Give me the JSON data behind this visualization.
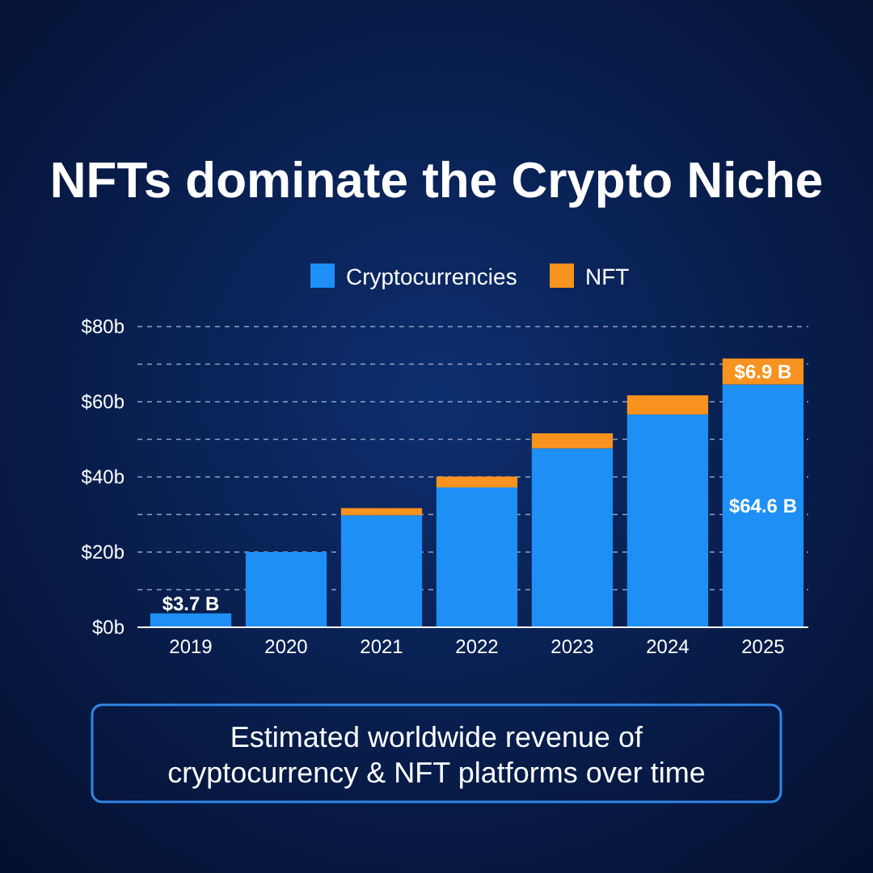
{
  "chart_data": {
    "type": "bar",
    "title": "NFTs dominate the Crypto Niche",
    "categories": [
      "2019",
      "2020",
      "2021",
      "2022",
      "2023",
      "2024",
      "2025"
    ],
    "stacked": true,
    "series": [
      {
        "name": "Cryptocurrencies",
        "color": "#1e8ff5",
        "values": [
          3.7,
          20,
          29.8,
          37.2,
          47.6,
          56.6,
          64.6
        ],
        "value_labels": [
          "$3.7 B",
          null,
          null,
          null,
          null,
          null,
          "$64.6 B"
        ]
      },
      {
        "name": "NFT",
        "color": "#f7931e",
        "values": [
          0,
          0,
          1.9,
          2.9,
          4.0,
          5.1,
          6.9
        ],
        "value_labels": [
          null,
          null,
          null,
          null,
          null,
          null,
          "$6.9 B"
        ]
      }
    ],
    "ylim": [
      0,
      80
    ],
    "yticks": [
      {
        "value": 0,
        "label": "$0b"
      },
      {
        "value": 10,
        "label": null
      },
      {
        "value": 20,
        "label": "$20b"
      },
      {
        "value": 30,
        "label": null
      },
      {
        "value": 40,
        "label": "$40b"
      },
      {
        "value": 50,
        "label": null
      },
      {
        "value": 60,
        "label": "$60b"
      },
      {
        "value": 70,
        "label": null
      },
      {
        "value": 80,
        "label": "$80b"
      }
    ],
    "grid": "y",
    "legend": "top",
    "annotations": [
      "Estimated worldwide revenue of cryptocurrency & NFT platforms over time"
    ]
  }
}
